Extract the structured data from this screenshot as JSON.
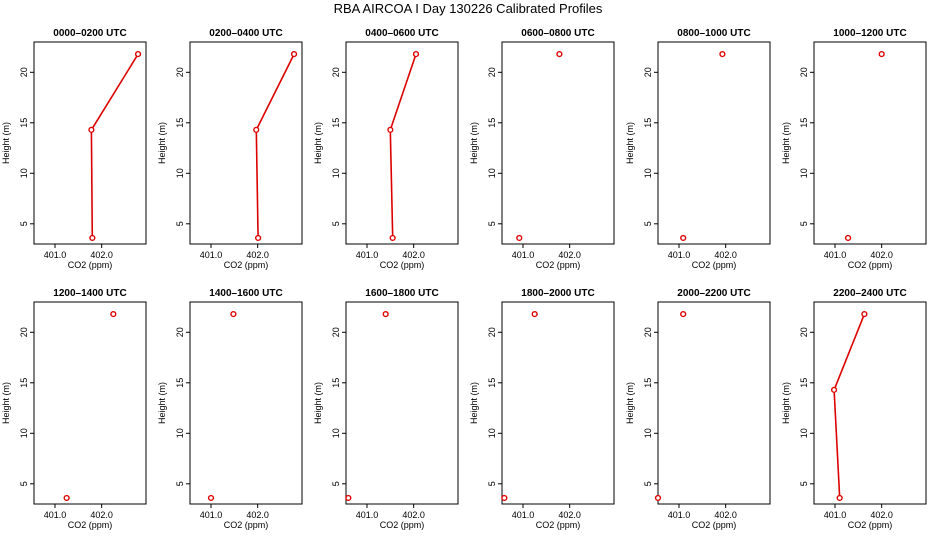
{
  "title": "RBA AIRCOA I  Day 130226  Calibrated Profiles",
  "colors": {
    "profile": "#dd0000",
    "axes": "#000000",
    "background": "#ffffff"
  },
  "chart_data": {
    "type": "line",
    "layout_rows": 2,
    "layout_cols": 6,
    "xlabel": "CO2 (ppm)",
    "ylabel": "Height (m)",
    "x_ticks": [
      401.0,
      402.0
    ],
    "x_tick_labels": [
      "401.0",
      "402.0"
    ],
    "y_ticks": [
      5,
      10,
      15,
      20
    ],
    "y_tick_labels": [
      "5",
      "10",
      "15",
      "20"
    ],
    "ylim": [
      3.0,
      23.0
    ],
    "grid": false,
    "legend": false,
    "panels": [
      {
        "title": "0000–0200 UTC",
        "xlim": [
          400.55,
          402.95
        ],
        "connected": true,
        "points": [
          {
            "co2": 401.8,
            "height": 3.6
          },
          {
            "co2": 401.78,
            "height": 14.3
          },
          {
            "co2": 402.78,
            "height": 21.8
          }
        ]
      },
      {
        "title": "0200–0400 UTC",
        "xlim": [
          400.55,
          402.95
        ],
        "connected": true,
        "points": [
          {
            "co2": 402.01,
            "height": 3.6
          },
          {
            "co2": 401.97,
            "height": 14.3
          },
          {
            "co2": 402.78,
            "height": 21.8
          }
        ]
      },
      {
        "title": "0400–0600 UTC",
        "xlim": [
          400.55,
          402.95
        ],
        "connected": true,
        "points": [
          {
            "co2": 401.55,
            "height": 3.6
          },
          {
            "co2": 401.5,
            "height": 14.3
          },
          {
            "co2": 402.05,
            "height": 21.8
          }
        ]
      },
      {
        "title": "0600–0800 UTC",
        "xlim": [
          400.55,
          402.95
        ],
        "connected": false,
        "points": [
          {
            "co2": 400.92,
            "height": 3.6
          },
          {
            "co2": 401.78,
            "height": 21.8
          }
        ]
      },
      {
        "title": "0800–1000 UTC",
        "xlim": [
          400.55,
          402.95
        ],
        "connected": false,
        "points": [
          {
            "co2": 401.09,
            "height": 3.6
          },
          {
            "co2": 401.93,
            "height": 21.8
          }
        ]
      },
      {
        "title": "1000–1200 UTC",
        "xlim": [
          400.55,
          402.95
        ],
        "connected": false,
        "points": [
          {
            "co2": 401.28,
            "height": 3.6
          },
          {
            "co2": 402.0,
            "height": 21.8
          }
        ]
      },
      {
        "title": "1200–1400 UTC",
        "xlim": [
          400.55,
          402.95
        ],
        "connected": false,
        "points": [
          {
            "co2": 401.25,
            "height": 3.6
          },
          {
            "co2": 402.25,
            "height": 21.8
          }
        ]
      },
      {
        "title": "1400–1600 UTC",
        "xlim": [
          400.55,
          402.95
        ],
        "connected": false,
        "points": [
          {
            "co2": 401.0,
            "height": 3.6
          },
          {
            "co2": 401.48,
            "height": 21.8
          }
        ]
      },
      {
        "title": "1600–1800 UTC",
        "xlim": [
          400.55,
          402.95
        ],
        "connected": false,
        "points": [
          {
            "co2": 400.6,
            "height": 3.6
          },
          {
            "co2": 401.4,
            "height": 21.8
          }
        ]
      },
      {
        "title": "1800–2000 UTC",
        "xlim": [
          400.55,
          402.95
        ],
        "connected": false,
        "points": [
          {
            "co2": 400.6,
            "height": 3.6
          },
          {
            "co2": 401.25,
            "height": 21.8
          }
        ]
      },
      {
        "title": "2000–2200 UTC",
        "xlim": [
          400.55,
          402.95
        ],
        "connected": false,
        "points": [
          {
            "co2": 400.55,
            "height": 3.6
          },
          {
            "co2": 401.09,
            "height": 21.8
          }
        ]
      },
      {
        "title": "2200–2400 UTC",
        "xlim": [
          400.55,
          402.95
        ],
        "connected": true,
        "points": [
          {
            "co2": 401.1,
            "height": 3.6
          },
          {
            "co2": 400.98,
            "height": 14.3
          },
          {
            "co2": 401.63,
            "height": 21.8
          }
        ]
      }
    ]
  }
}
